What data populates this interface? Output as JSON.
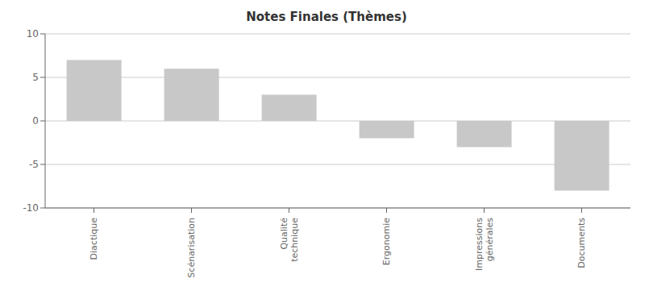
{
  "chart_data": {
    "type": "bar",
    "title": "Notes Finales (Thèmes)",
    "categories": [
      "Diactique",
      "Scénarisation",
      "Qualité\ntechnique",
      "Ergonomie",
      "Impressions\ngénérales",
      "Documents"
    ],
    "values": [
      7,
      6,
      3,
      -2,
      -3,
      -8
    ],
    "color": "#c8c8c8",
    "ylim": [
      -10,
      10
    ],
    "yticks": [
      -10,
      -5,
      0,
      5,
      10
    ],
    "grid": true
  }
}
